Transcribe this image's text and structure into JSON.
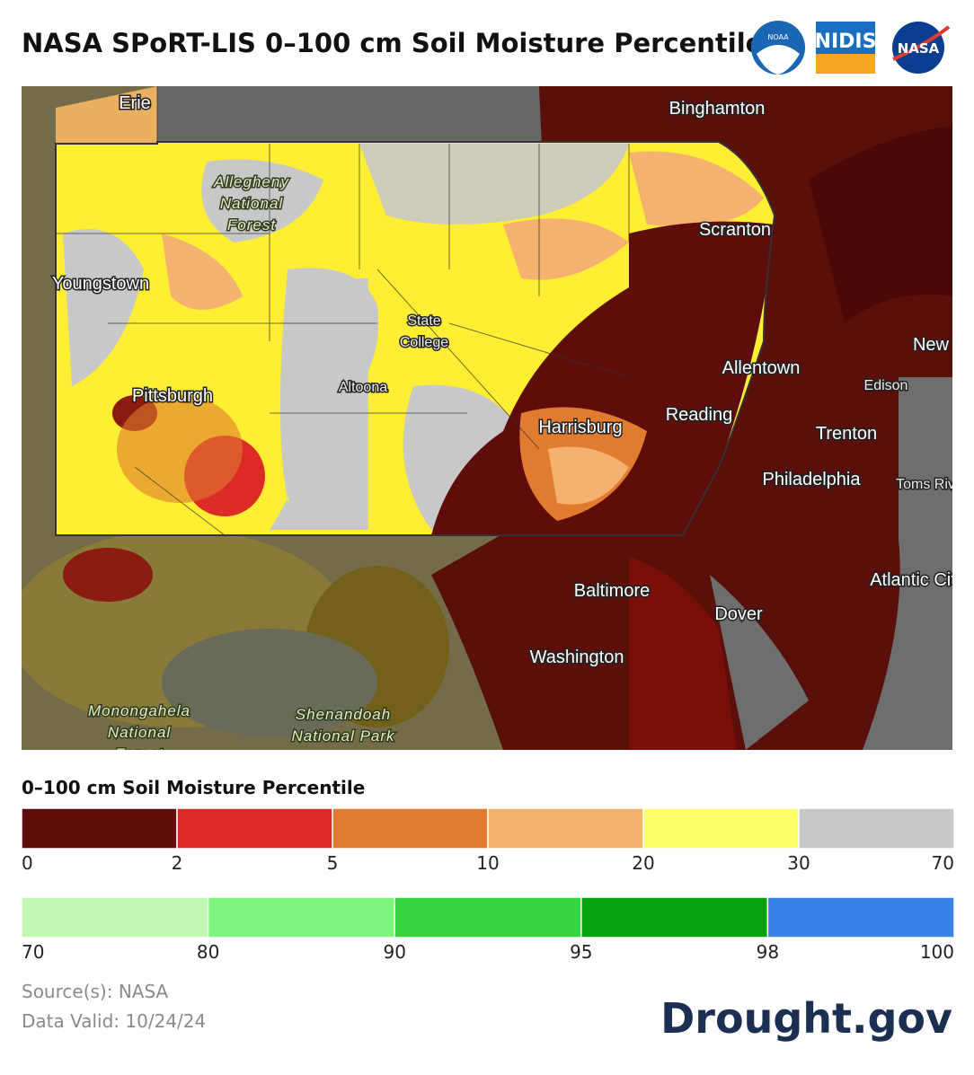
{
  "title": "NASA SPoRT-LIS 0–100 cm Soil Moisture Percentile",
  "logos": [
    "NOAA",
    "NIDIS",
    "NASA"
  ],
  "map_labels": [
    {
      "lines": [
        "Erie"
      ]
    },
    {
      "lines": [
        "Binghamton"
      ]
    },
    {
      "lines": [
        "Allegheny",
        "National",
        "Forest"
      ]
    },
    {
      "lines": [
        "Scranton"
      ]
    },
    {
      "lines": [
        "Youngstown"
      ]
    },
    {
      "lines": [
        "State",
        "College"
      ]
    },
    {
      "lines": [
        "Altoona"
      ]
    },
    {
      "lines": [
        "Pittsburgh"
      ]
    },
    {
      "lines": [
        "Harrisburg"
      ]
    },
    {
      "lines": [
        "Reading"
      ]
    },
    {
      "lines": [
        "Allentown"
      ]
    },
    {
      "lines": [
        "New"
      ]
    },
    {
      "lines": [
        "Edison"
      ]
    },
    {
      "lines": [
        "Trenton"
      ]
    },
    {
      "lines": [
        "Philadelphia"
      ]
    },
    {
      "lines": [
        "Toms Riv"
      ]
    },
    {
      "lines": [
        "Atlantic Cit"
      ]
    },
    {
      "lines": [
        "Baltimore"
      ]
    },
    {
      "lines": [
        "Dover"
      ]
    },
    {
      "lines": [
        "Washington"
      ]
    },
    {
      "lines": [
        "Monongahela",
        "National",
        "Forest"
      ]
    },
    {
      "lines": [
        "Shenandoah",
        "National Park"
      ]
    }
  ],
  "legend": {
    "title": "0–100 cm Soil Moisture Percentile",
    "scales": [
      {
        "ticks": [
          0,
          2,
          5,
          10,
          20,
          30,
          70
        ],
        "colors": [
          "#5e0d0a",
          "#dc2a26",
          "#e07b2f",
          "#f5b16f",
          "#ffff66",
          "#c8c8c8"
        ]
      },
      {
        "ticks": [
          70,
          80,
          90,
          95,
          98,
          100
        ],
        "colors": [
          "#c4f7b4",
          "#7df57a",
          "#33d43d",
          "#0ba211",
          "#3b82e6"
        ]
      }
    ]
  },
  "source": "Source(s): NASA",
  "date": "Data Valid: 10/24/24",
  "brand": "Drought.gov"
}
